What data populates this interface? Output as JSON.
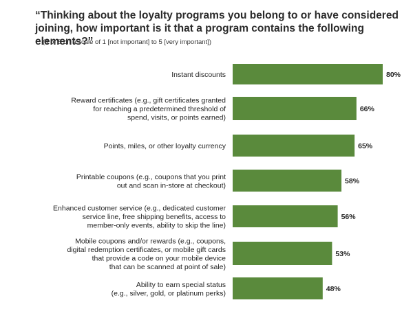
{
  "chart_data": {
    "type": "bar",
    "orientation": "horizontal",
    "title": "“Thinking about the loyalty programs you belong to or have considered joining, how important is it that a program contains the following elements?”",
    "subtitle": "(4 or 5 on a scale of 1 [not important] to 5 [very important])",
    "xlim": [
      0,
      100
    ],
    "grid": false,
    "bar_color": "#5a8a3c",
    "categories": [
      [
        "Instant discounts"
      ],
      [
        "Reward certificates (e.g., gift certificates granted",
        "for reaching a predetermined threshold of",
        "spend, visits, or points earned)"
      ],
      [
        "Points, miles, or other loyalty currency"
      ],
      [
        "Printable coupons (e.g., coupons that you print",
        "out and scan in-store at checkout)"
      ],
      [
        "Enhanced customer service (e.g., dedicated customer",
        "service line, free shipping benefits, access to",
        "member-only events, ability to skip the line)"
      ],
      [
        "Mobile coupons and/or rewards (e.g., coupons,",
        "digital redemption certificates, or mobile gift cards",
        "that provide a code on your mobile device",
        "that can be scanned at point of sale)"
      ],
      [
        "Ability to earn special status",
        "(e.g., silver, gold, or platinum perks)"
      ]
    ],
    "values": [
      80,
      66,
      65,
      58,
      56,
      53,
      48
    ],
    "value_labels": [
      "80%",
      "66%",
      "65%",
      "58%",
      "56%",
      "53%",
      "48%"
    ]
  }
}
